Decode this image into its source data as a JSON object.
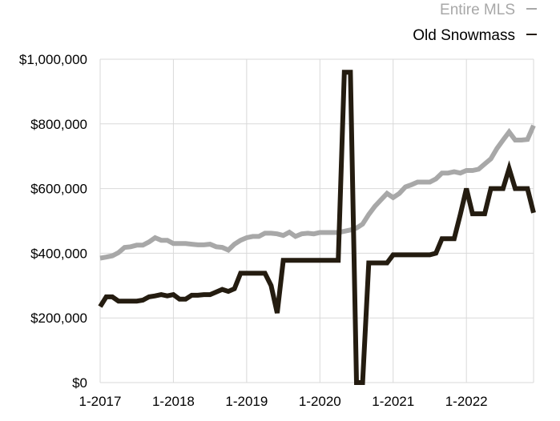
{
  "chart_data": {
    "type": "line",
    "title": "",
    "xlabel": "",
    "ylabel": "",
    "x_range": [
      "2017-01",
      "2022-12"
    ],
    "ylim": [
      0,
      1000000
    ],
    "y_ticks": [
      {
        "value": 0,
        "label": "$0"
      },
      {
        "value": 200000,
        "label": "$200,000"
      },
      {
        "value": 400000,
        "label": "$400,000"
      },
      {
        "value": 600000,
        "label": "$600,000"
      },
      {
        "value": 800000,
        "label": "$800,000"
      },
      {
        "value": 1000000,
        "label": "$1,000,000"
      }
    ],
    "x_ticks": [
      {
        "value": "2017-01",
        "label": "1-2017"
      },
      {
        "value": "2018-01",
        "label": "1-2018"
      },
      {
        "value": "2019-01",
        "label": "1-2019"
      },
      {
        "value": "2020-01",
        "label": "1-2020"
      },
      {
        "value": "2021-01",
        "label": "1-2021"
      },
      {
        "value": "2022-01",
        "label": "1-2022"
      }
    ],
    "grid": true,
    "legend_position": "top-right",
    "series": [
      {
        "name": "Entire MLS",
        "color": "#a8a8a8",
        "points": [
          [
            "2017-01",
            385000
          ],
          [
            "2017-02",
            388000
          ],
          [
            "2017-03",
            392000
          ],
          [
            "2017-04",
            402000
          ],
          [
            "2017-05",
            418000
          ],
          [
            "2017-06",
            420000
          ],
          [
            "2017-07",
            425000
          ],
          [
            "2017-08",
            425000
          ],
          [
            "2017-09",
            435000
          ],
          [
            "2017-10",
            448000
          ],
          [
            "2017-11",
            440000
          ],
          [
            "2017-12",
            440000
          ],
          [
            "2018-01",
            430000
          ],
          [
            "2018-02",
            430000
          ],
          [
            "2018-03",
            430000
          ],
          [
            "2018-04",
            428000
          ],
          [
            "2018-05",
            426000
          ],
          [
            "2018-06",
            426000
          ],
          [
            "2018-07",
            428000
          ],
          [
            "2018-08",
            420000
          ],
          [
            "2018-09",
            418000
          ],
          [
            "2018-10",
            410000
          ],
          [
            "2018-11",
            428000
          ],
          [
            "2018-12",
            440000
          ],
          [
            "2019-01",
            448000
          ],
          [
            "2019-02",
            452000
          ],
          [
            "2019-03",
            452000
          ],
          [
            "2019-04",
            462000
          ],
          [
            "2019-05",
            462000
          ],
          [
            "2019-06",
            460000
          ],
          [
            "2019-07",
            455000
          ],
          [
            "2019-08",
            465000
          ],
          [
            "2019-09",
            452000
          ],
          [
            "2019-10",
            460000
          ],
          [
            "2019-11",
            462000
          ],
          [
            "2019-12",
            460000
          ],
          [
            "2020-01",
            464000
          ],
          [
            "2020-02",
            464000
          ],
          [
            "2020-03",
            464000
          ],
          [
            "2020-04",
            464000
          ],
          [
            "2020-05",
            468000
          ],
          [
            "2020-06",
            472000
          ],
          [
            "2020-07",
            478000
          ],
          [
            "2020-08",
            490000
          ],
          [
            "2020-09",
            520000
          ],
          [
            "2020-10",
            545000
          ],
          [
            "2020-11",
            565000
          ],
          [
            "2020-12",
            585000
          ],
          [
            "2021-01",
            572000
          ],
          [
            "2021-02",
            585000
          ],
          [
            "2021-03",
            605000
          ],
          [
            "2021-04",
            612000
          ],
          [
            "2021-05",
            620000
          ],
          [
            "2021-06",
            620000
          ],
          [
            "2021-07",
            620000
          ],
          [
            "2021-08",
            630000
          ],
          [
            "2021-09",
            648000
          ],
          [
            "2021-10",
            648000
          ],
          [
            "2021-11",
            652000
          ],
          [
            "2021-12",
            648000
          ],
          [
            "2022-01",
            656000
          ],
          [
            "2022-02",
            656000
          ],
          [
            "2022-03",
            660000
          ],
          [
            "2022-04",
            676000
          ],
          [
            "2022-05",
            692000
          ],
          [
            "2022-06",
            724000
          ],
          [
            "2022-07",
            750000
          ],
          [
            "2022-08",
            775000
          ],
          [
            "2022-09",
            750000
          ],
          [
            "2022-10",
            750000
          ],
          [
            "2022-11",
            752000
          ],
          [
            "2022-12",
            795000
          ]
        ]
      },
      {
        "name": "Old Snowmass",
        "color": "#241c10",
        "points": [
          [
            "2017-01",
            235000
          ],
          [
            "2017-02",
            265000
          ],
          [
            "2017-03",
            265000
          ],
          [
            "2017-04",
            252000
          ],
          [
            "2017-05",
            252000
          ],
          [
            "2017-06",
            252000
          ],
          [
            "2017-07",
            252000
          ],
          [
            "2017-08",
            255000
          ],
          [
            "2017-09",
            265000
          ],
          [
            "2017-10",
            268000
          ],
          [
            "2017-11",
            272000
          ],
          [
            "2017-12",
            268000
          ],
          [
            "2018-01",
            272000
          ],
          [
            "2018-02",
            258000
          ],
          [
            "2018-03",
            258000
          ],
          [
            "2018-04",
            270000
          ],
          [
            "2018-05",
            270000
          ],
          [
            "2018-06",
            272000
          ],
          [
            "2018-07",
            272000
          ],
          [
            "2018-08",
            280000
          ],
          [
            "2018-09",
            288000
          ],
          [
            "2018-10",
            282000
          ],
          [
            "2018-11",
            290000
          ],
          [
            "2018-12",
            338000
          ],
          [
            "2019-01",
            338000
          ],
          [
            "2019-02",
            338000
          ],
          [
            "2019-03",
            338000
          ],
          [
            "2019-04",
            338000
          ],
          [
            "2019-05",
            300000
          ],
          [
            "2019-06",
            215000
          ],
          [
            "2019-07",
            378000
          ],
          [
            "2019-08",
            378000
          ],
          [
            "2019-09",
            378000
          ],
          [
            "2019-10",
            378000
          ],
          [
            "2019-11",
            378000
          ],
          [
            "2019-12",
            378000
          ],
          [
            "2020-01",
            378000
          ],
          [
            "2020-02",
            378000
          ],
          [
            "2020-03",
            378000
          ],
          [
            "2020-04",
            378000
          ],
          [
            "2020-05",
            960000
          ],
          [
            "2020-06",
            960000
          ],
          [
            "2020-07",
            0
          ],
          [
            "2020-08",
            0
          ],
          [
            "2020-09",
            370000
          ],
          [
            "2020-10",
            370000
          ],
          [
            "2020-11",
            370000
          ],
          [
            "2020-12",
            370000
          ],
          [
            "2021-01",
            395000
          ],
          [
            "2021-02",
            395000
          ],
          [
            "2021-03",
            395000
          ],
          [
            "2021-04",
            395000
          ],
          [
            "2021-05",
            395000
          ],
          [
            "2021-06",
            395000
          ],
          [
            "2021-07",
            395000
          ],
          [
            "2021-08",
            400000
          ],
          [
            "2021-09",
            445000
          ],
          [
            "2021-10",
            445000
          ],
          [
            "2021-11",
            445000
          ],
          [
            "2021-12",
            520000
          ],
          [
            "2022-01",
            600000
          ],
          [
            "2022-02",
            522000
          ],
          [
            "2022-03",
            522000
          ],
          [
            "2022-04",
            522000
          ],
          [
            "2022-05",
            600000
          ],
          [
            "2022-06",
            600000
          ],
          [
            "2022-07",
            600000
          ],
          [
            "2022-08",
            662000
          ],
          [
            "2022-09",
            600000
          ],
          [
            "2022-10",
            600000
          ],
          [
            "2022-11",
            600000
          ],
          [
            "2022-12",
            525000
          ]
        ]
      }
    ]
  }
}
